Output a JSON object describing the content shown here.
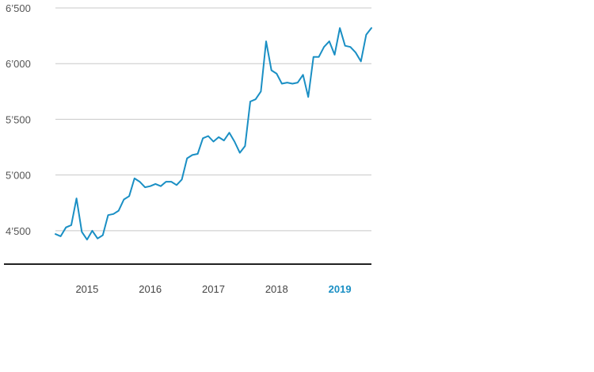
{
  "chart_data": {
    "type": "line",
    "title": "",
    "xlabel": "",
    "ylabel": "",
    "ylim": [
      4200,
      6500
    ],
    "yticks": [
      4500,
      5000,
      5500,
      6000,
      6500
    ],
    "ytick_labels": [
      "4’500",
      "5’000",
      "5’500",
      "6’000",
      "6’500"
    ],
    "grid": true,
    "x_range": [
      2014.5,
      2019.5
    ],
    "xtick_labels": [
      "2015",
      "2016",
      "2017",
      "2018",
      "2019"
    ],
    "highlight_label": "2019",
    "colors": {
      "line": "#1a8fc4",
      "highlight": "#1a8fc4"
    },
    "series": [
      {
        "x": [
          2014.5,
          2014.583,
          2014.667,
          2014.75,
          2014.833,
          2014.917,
          2015.0,
          2015.083,
          2015.167,
          2015.25,
          2015.333,
          2015.417,
          2015.5,
          2015.583,
          2015.667,
          2015.75,
          2015.833,
          2015.917,
          2016.0,
          2016.083,
          2016.167,
          2016.25,
          2016.333,
          2016.417,
          2016.5,
          2016.583,
          2016.667,
          2016.75,
          2016.833,
          2016.917,
          2017.0,
          2017.083,
          2017.167,
          2017.25,
          2017.333,
          2017.417,
          2017.5,
          2017.583,
          2017.667,
          2017.75,
          2017.833,
          2017.917,
          2018.0,
          2018.083,
          2018.167,
          2018.25,
          2018.333,
          2018.417,
          2018.5,
          2018.583,
          2018.667,
          2018.75,
          2018.833,
          2018.917,
          2019.0,
          2019.083,
          2019.167,
          2019.25,
          2019.333,
          2019.417,
          2019.5
        ],
        "values": [
          4470,
          4450,
          4530,
          4550,
          4790,
          4490,
          4420,
          4500,
          4430,
          4460,
          4640,
          4650,
          4680,
          4780,
          4810,
          4970,
          4940,
          4890,
          4900,
          4920,
          4900,
          4940,
          4940,
          4910,
          4960,
          5150,
          5180,
          5190,
          5330,
          5350,
          5300,
          5340,
          5310,
          5380,
          5300,
          5200,
          5260,
          5660,
          5680,
          5750,
          6200,
          5940,
          5910,
          5820,
          5830,
          5820,
          5830,
          5900,
          5700,
          6060,
          6060,
          6150,
          6200,
          6080,
          6320,
          6160,
          6150,
          6100,
          6020,
          6260,
          6320
        ]
      }
    ]
  }
}
